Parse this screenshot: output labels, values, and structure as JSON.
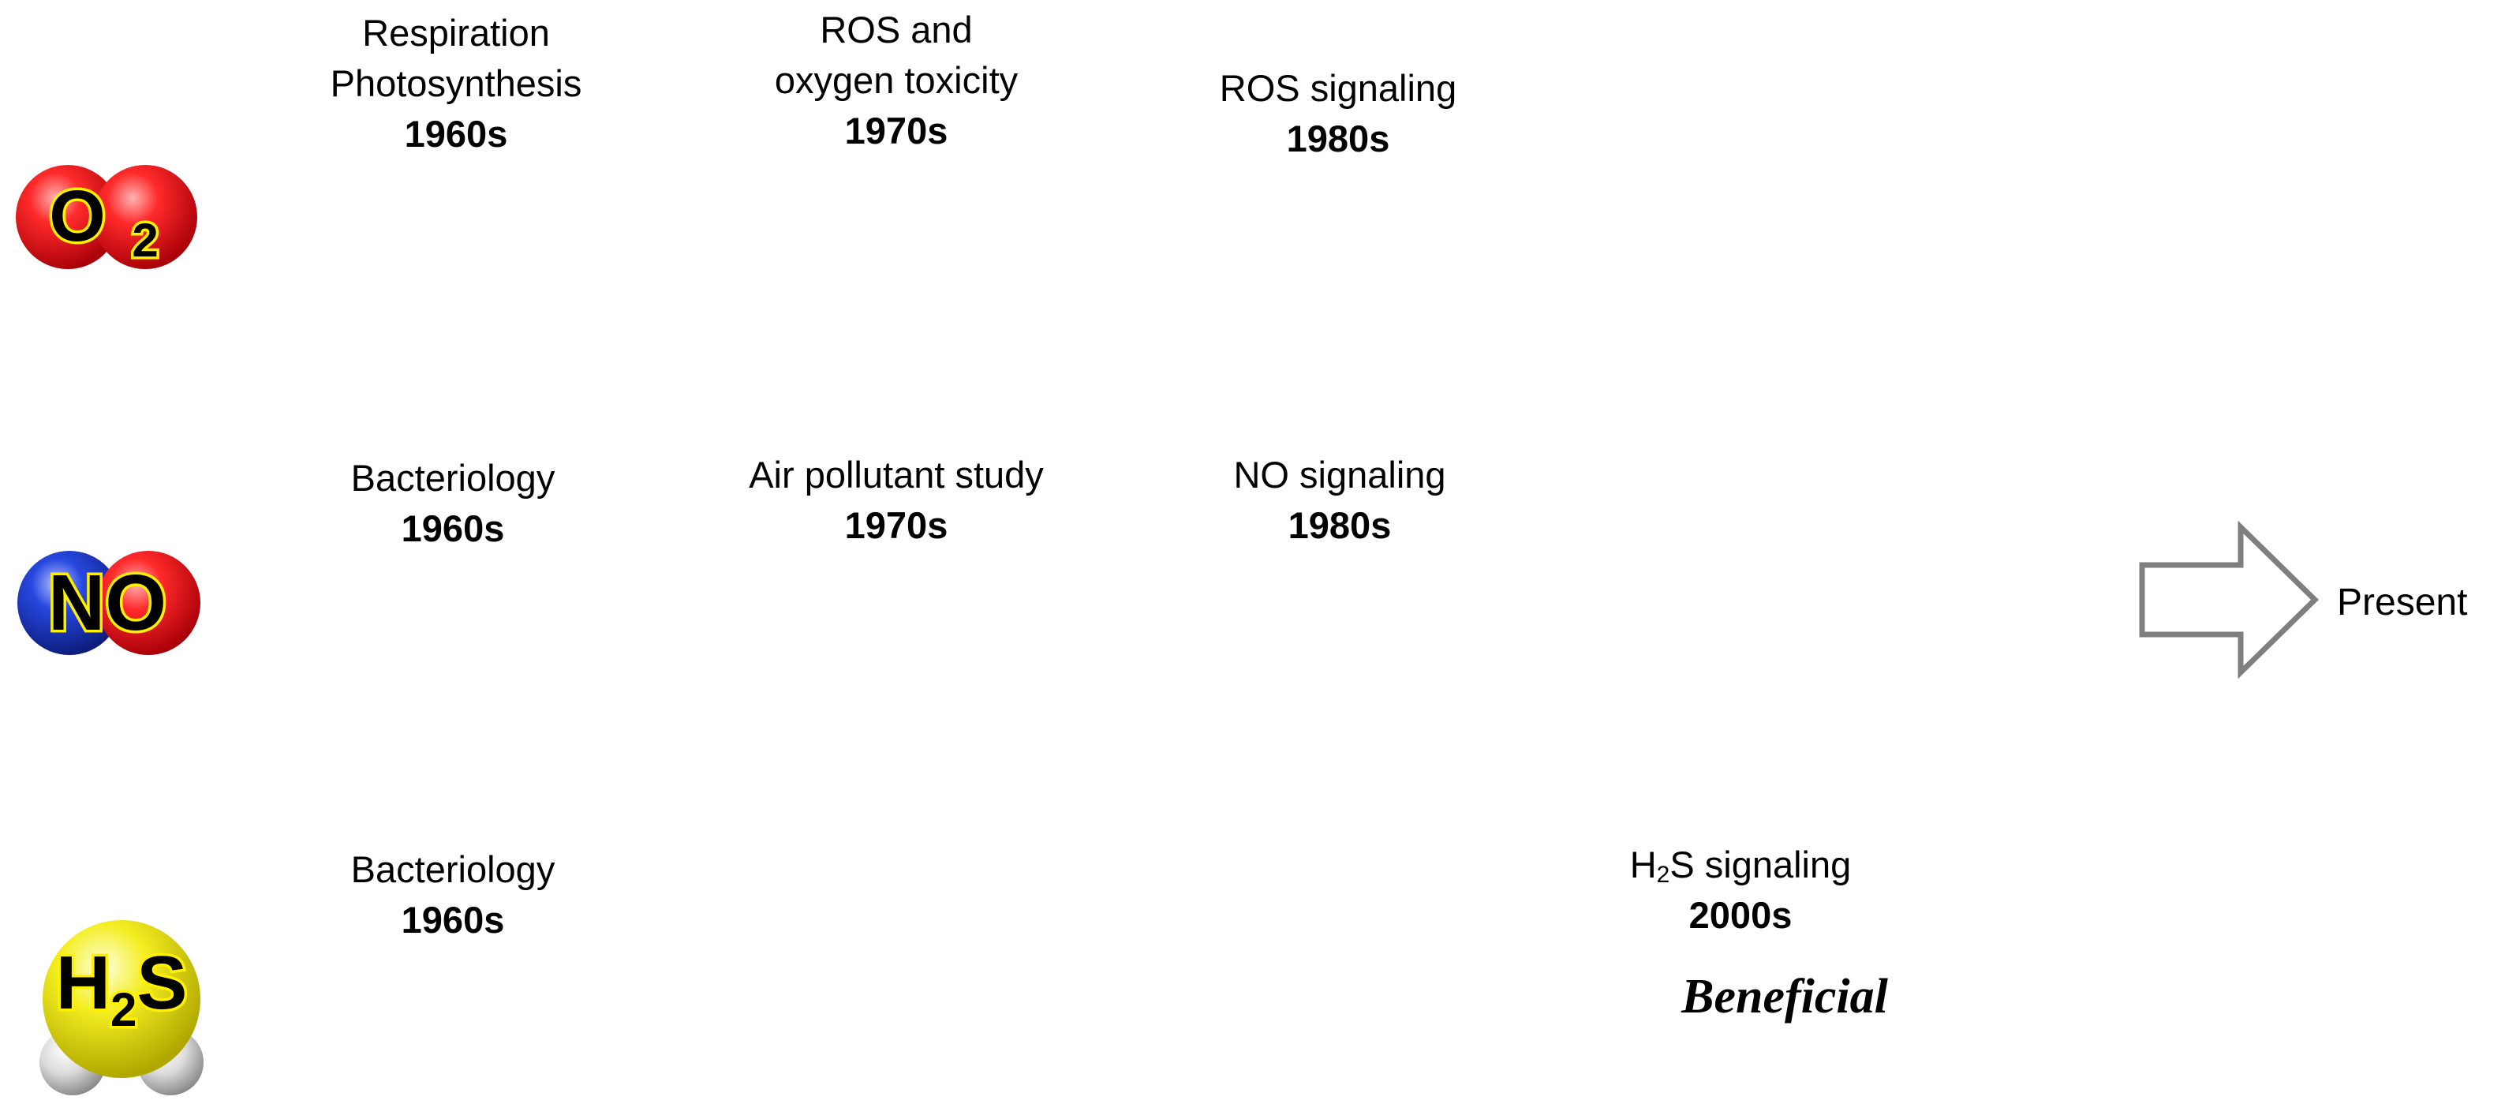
{
  "molecules": {
    "o2": {
      "main": "O",
      "sub": "2",
      "colors": [
        "#e8101a",
        "#e8101a"
      ]
    },
    "no": {
      "main": "NO",
      "colors": [
        "#1f3cc4",
        "#e8101a"
      ]
    },
    "h2s": {
      "pre": "H",
      "sub": "2",
      "post": "S",
      "colors": [
        "#f6f21a",
        "#d8d8d8"
      ]
    }
  },
  "rows": {
    "o2": [
      {
        "lines": [
          "Respiration",
          "Photosynthesis"
        ],
        "decade": "1960s"
      },
      {
        "lines": [
          "ROS and",
          "oxygen toxicity"
        ],
        "decade": "1970s"
      },
      {
        "lines": [
          "ROS signaling"
        ],
        "decade": "1980s"
      }
    ],
    "no": [
      {
        "lines": [
          "Bacteriology"
        ],
        "decade": "1960s"
      },
      {
        "lines": [
          "Air pollutant study"
        ],
        "decade": "1970s"
      },
      {
        "lines": [
          "NO signaling"
        ],
        "decade": "1980s"
      }
    ],
    "h2s": [
      {
        "lines": [
          "Bacteriology"
        ],
        "decade": "1960s"
      },
      {
        "pre": "H",
        "sub": "2",
        "post": "S signaling",
        "decade": "2000s"
      }
    ]
  },
  "beneficial": "Beneficial",
  "arrow_label": "Present"
}
